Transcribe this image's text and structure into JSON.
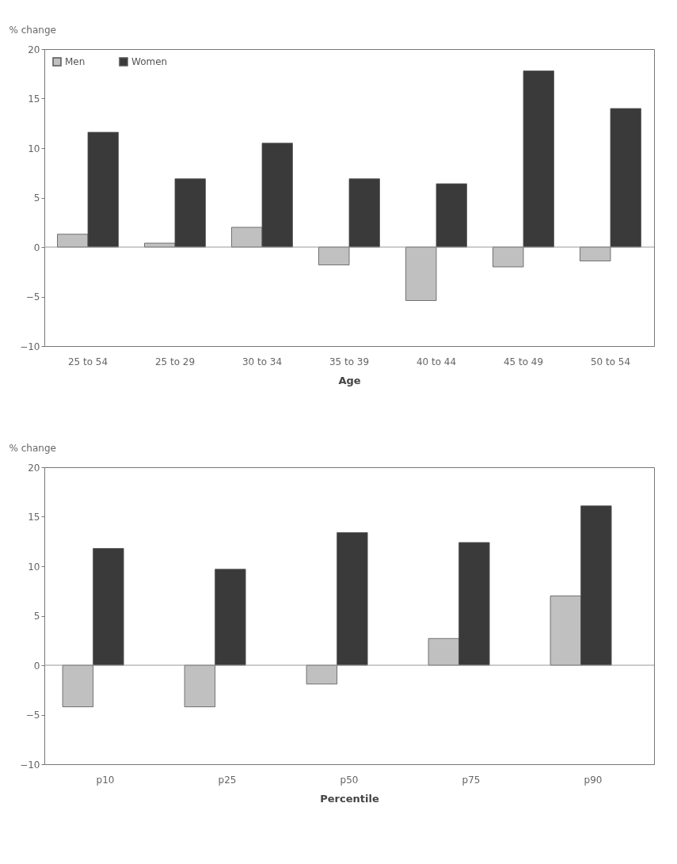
{
  "chart_data": [
    {
      "type": "bar",
      "ylabel": "% change",
      "xlabel": "Age",
      "categories": [
        "25 to 54",
        "25 to 29",
        "30 to 34",
        "35 to 39",
        "40 to 44",
        "45 to 49",
        "50 to 54"
      ],
      "series": [
        {
          "name": "Men",
          "color": "#c0c0c0",
          "values": [
            1.3,
            0.4,
            2.0,
            -1.8,
            -5.4,
            -2.0,
            -1.4
          ]
        },
        {
          "name": "Women",
          "color": "#3a3a3a",
          "values": [
            11.6,
            6.9,
            10.5,
            6.9,
            6.4,
            17.8,
            14.0
          ]
        }
      ],
      "ylim": [
        -10,
        20
      ],
      "yticks": [
        -10,
        -5,
        0,
        5,
        10,
        15,
        20
      ],
      "grid": false,
      "legend": "top left",
      "ref_lines": [
        {
          "axis": "y",
          "value": 0,
          "color": "#999999"
        }
      ]
    },
    {
      "type": "bar",
      "ylabel": "% change",
      "xlabel": "Percentile",
      "categories": [
        "p10",
        "p25",
        "p50",
        "p75",
        "p90"
      ],
      "series": [
        {
          "color": "#c0c0c0",
          "values": [
            -4.2,
            -4.2,
            -1.9,
            2.7,
            7.0
          ]
        },
        {
          "color": "#3a3a3a",
          "values": [
            11.8,
            9.7,
            13.4,
            12.4,
            16.1
          ]
        }
      ],
      "ylim": [
        -10,
        20
      ],
      "yticks": [
        -10,
        -5,
        0,
        5,
        10,
        15,
        20
      ],
      "grid": false,
      "legend": false,
      "ref_lines": [
        {
          "axis": "y",
          "value": 0,
          "color": "#999999"
        }
      ]
    }
  ]
}
